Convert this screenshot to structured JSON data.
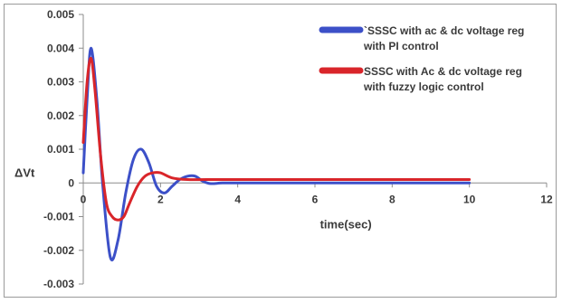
{
  "chart_data": {
    "type": "line",
    "title": "",
    "xlabel": "time(sec)",
    "ylabel": "ΔVt",
    "xlim": [
      0,
      12
    ],
    "ylim": [
      -0.003,
      0.005
    ],
    "x_ticks": [
      "0",
      "2",
      "4",
      "6",
      "8",
      "10",
      "12"
    ],
    "y_ticks": [
      "0.005",
      "0.004",
      "0.003",
      "0.002",
      "0.001",
      "0",
      "-0.001",
      "-0.002",
      "-0.003"
    ],
    "legend_position": "top-right",
    "grid": false,
    "series": [
      {
        "name": "`SSSC with ac & dc voltage reg with PI control",
        "legend_lines": [
          "`SSSC with ac & dc voltage reg",
          "with PI control"
        ],
        "color": "#3c50c8",
        "x": [
          0,
          0.1,
          0.2,
          0.35,
          0.5,
          0.7,
          0.9,
          1.1,
          1.3,
          1.5,
          1.7,
          1.9,
          2.1,
          2.3,
          2.5,
          2.7,
          2.9,
          3.1,
          3.3,
          3.6,
          4.0,
          5.0,
          6.0,
          8.0,
          10.0
        ],
        "y": [
          0.0003,
          0.0025,
          0.004,
          0.0025,
          0.0,
          -0.0022,
          -0.0017,
          -0.0003,
          0.0007,
          0.001,
          0.0006,
          -0.0001,
          -0.0003,
          -0.0001,
          0.0001,
          0.0002,
          0.0002,
          5e-05,
          -2e-05,
          0.0,
          0.0,
          0.0,
          0.0,
          0.0,
          0.0
        ]
      },
      {
        "name": "SSSC with Ac & dc voltage reg with fuzzy logic control",
        "legend_lines": [
          "SSSC with Ac & dc voltage reg",
          "with fuzzy logic control"
        ],
        "color": "#d9252a",
        "x": [
          0,
          0.1,
          0.2,
          0.3,
          0.45,
          0.6,
          0.75,
          0.9,
          1.05,
          1.2,
          1.4,
          1.6,
          1.8,
          2.0,
          2.3,
          2.7,
          3.2,
          4.0,
          5.0,
          6.0,
          8.0,
          10.0
        ],
        "y": [
          0.0012,
          0.003,
          0.0037,
          0.0028,
          0.0008,
          -0.0006,
          -0.001,
          -0.0011,
          -0.001,
          -0.0006,
          -0.0001,
          0.0002,
          0.0003,
          0.0003,
          0.00015,
          0.0001,
          0.0001,
          0.0001,
          0.0001,
          0.0001,
          0.0001,
          0.0001
        ]
      }
    ]
  }
}
